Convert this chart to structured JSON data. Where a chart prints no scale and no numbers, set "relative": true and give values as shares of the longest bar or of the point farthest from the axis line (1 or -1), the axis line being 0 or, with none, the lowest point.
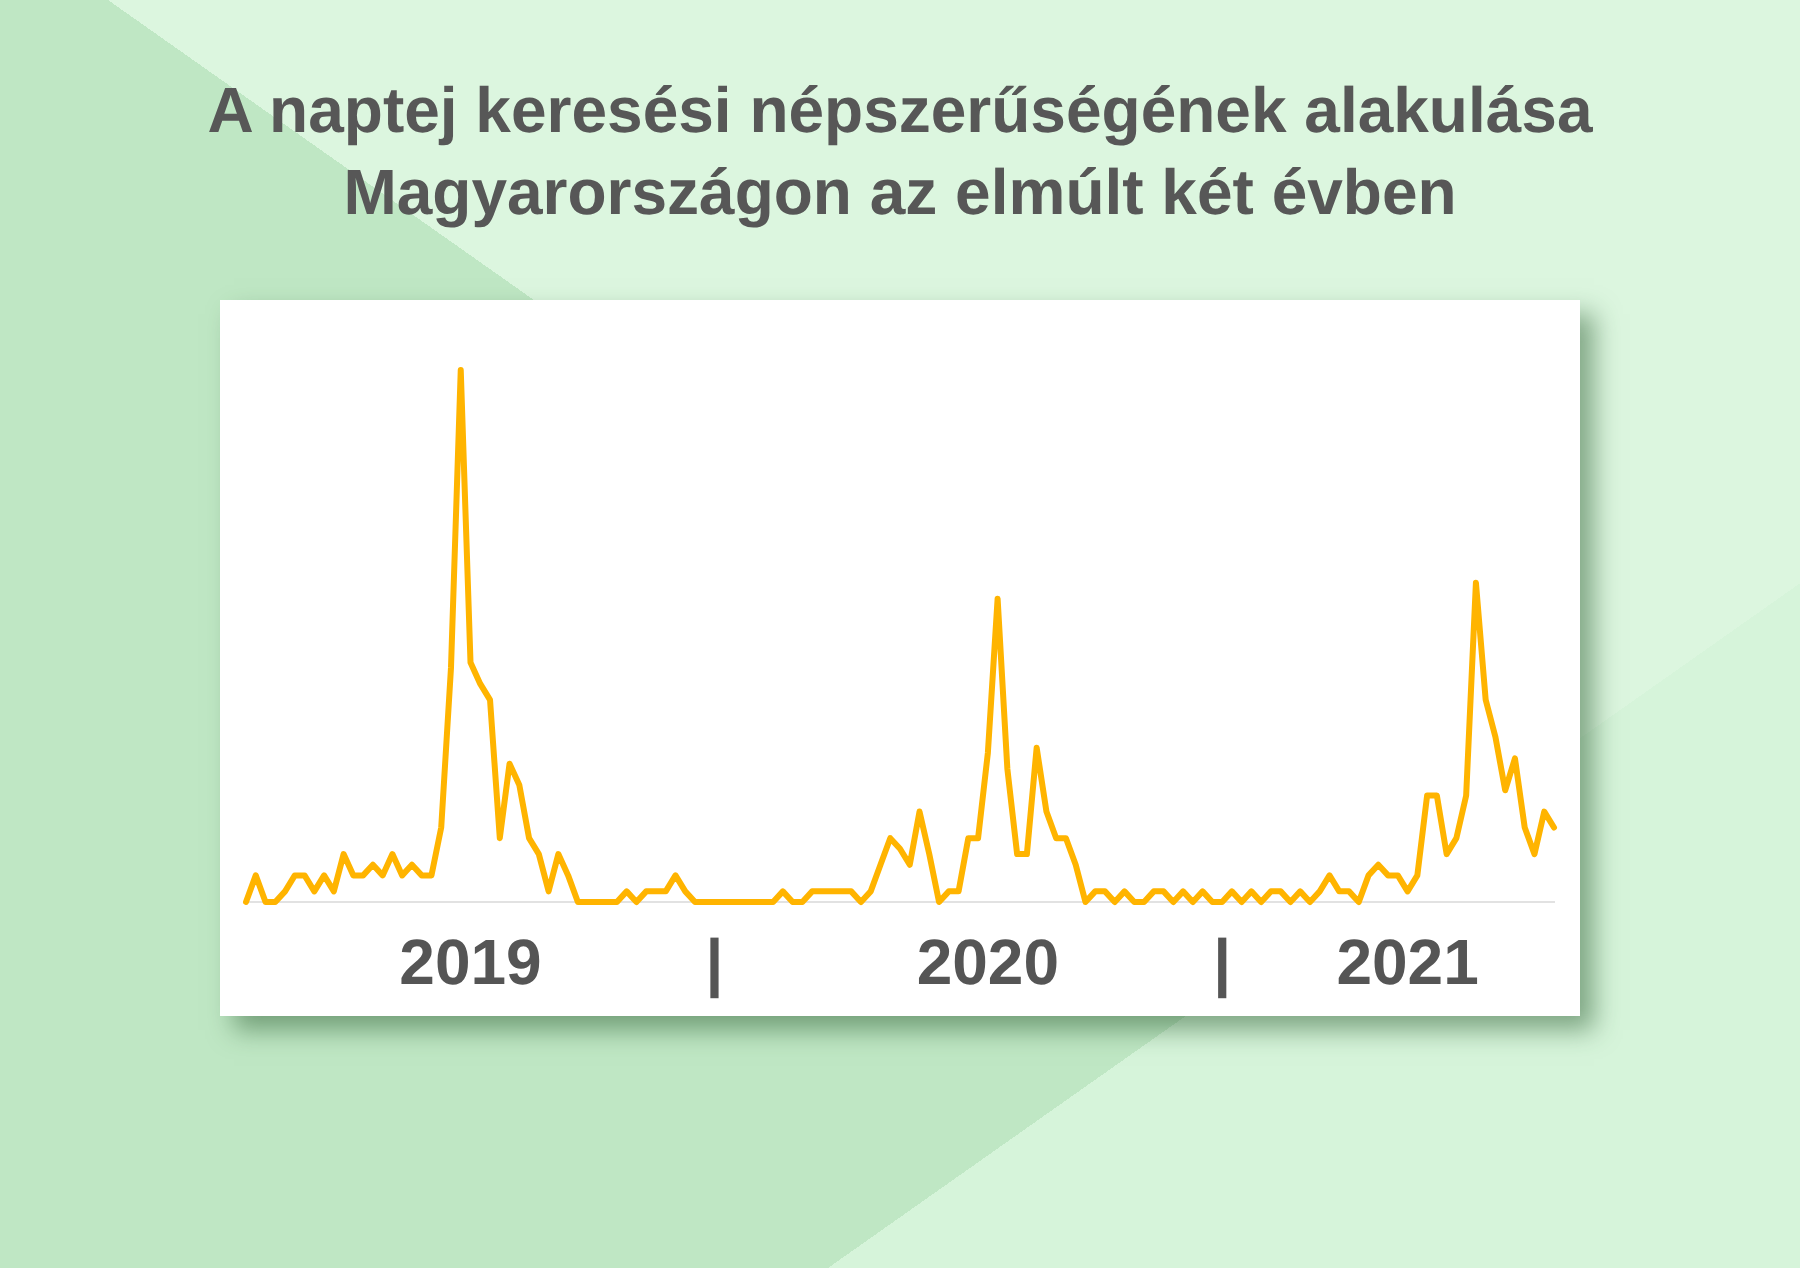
{
  "chart_data": {
    "type": "line",
    "title": "A naptej keresési népszerűségének alakulása Magyarországon az elmúlt két évben",
    "relative": true,
    "categories": [
      null,
      null,
      null,
      null,
      null,
      null,
      null,
      null,
      null,
      null,
      null,
      null,
      null,
      null,
      null,
      null,
      null,
      null,
      null,
      null,
      null,
      null,
      null,
      "2019",
      null,
      null,
      null,
      null,
      null,
      null,
      null,
      null,
      null,
      null,
      null,
      null,
      null,
      null,
      null,
      null,
      null,
      null,
      null,
      null,
      null,
      null,
      null,
      null,
      "|",
      null,
      null,
      null,
      null,
      null,
      null,
      null,
      null,
      null,
      null,
      null,
      null,
      null,
      null,
      null,
      null,
      null,
      null,
      null,
      null,
      null,
      null,
      null,
      null,
      null,
      null,
      null,
      "2020",
      null,
      null,
      null,
      null,
      null,
      null,
      null,
      null,
      null,
      null,
      null,
      null,
      null,
      null,
      null,
      null,
      null,
      null,
      null,
      null,
      null,
      null,
      null,
      "|",
      null,
      null,
      null,
      null,
      null,
      null,
      null,
      null,
      null,
      null,
      null,
      null,
      null,
      null,
      null,
      null,
      null,
      null,
      "2021",
      null,
      null,
      null,
      null,
      null,
      null,
      null,
      null,
      null,
      null,
      null,
      null,
      null,
      null,
      null
    ],
    "values": [
      0,
      0.05,
      0,
      0,
      0.02,
      0.05,
      0.05,
      0.02,
      0.05,
      0.02,
      0.09,
      0.05,
      0.05,
      0.07,
      0.05,
      0.09,
      0.05,
      0.07,
      0.05,
      0.05,
      0.14,
      0.44,
      1,
      0.45,
      0.41,
      0.38,
      0.12,
      0.26,
      0.22,
      0.12,
      0.09,
      0.02,
      0.09,
      0.05,
      0,
      0,
      0,
      0,
      0,
      0.02,
      0,
      0.02,
      0.02,
      0.02,
      0.05,
      0.02,
      0,
      0,
      0,
      0,
      0,
      0,
      0,
      0,
      0,
      0.02,
      0,
      0,
      0.02,
      0.02,
      0.02,
      0.02,
      0.02,
      0,
      0.02,
      0.07,
      0.12,
      0.1,
      0.07,
      0.17,
      0.09,
      0,
      0.02,
      0.02,
      0.12,
      0.12,
      0.28,
      0.57,
      0.25,
      0.09,
      0.09,
      0.29,
      0.17,
      0.12,
      0.12,
      0.07,
      0,
      0.02,
      0.02,
      0,
      0.02,
      0,
      0,
      0.02,
      0.02,
      0,
      0.02,
      0,
      0.02,
      0,
      0,
      0.02,
      0,
      0.02,
      0,
      0.02,
      0.02,
      0,
      0.02,
      0,
      0.02,
      0.05,
      0.02,
      0.02,
      0,
      0.05,
      0.07,
      0.05,
      0.05,
      0.02,
      0.05,
      0.2,
      0.2,
      0.09,
      0.12,
      0.2,
      0.6,
      0.38,
      0.31,
      0.21,
      0.27,
      0.14,
      0.09,
      0.17,
      0.14
    ],
    "color": "#ffb400",
    "grid": false,
    "legend": false,
    "marker": "none",
    "line_style": "solid"
  }
}
